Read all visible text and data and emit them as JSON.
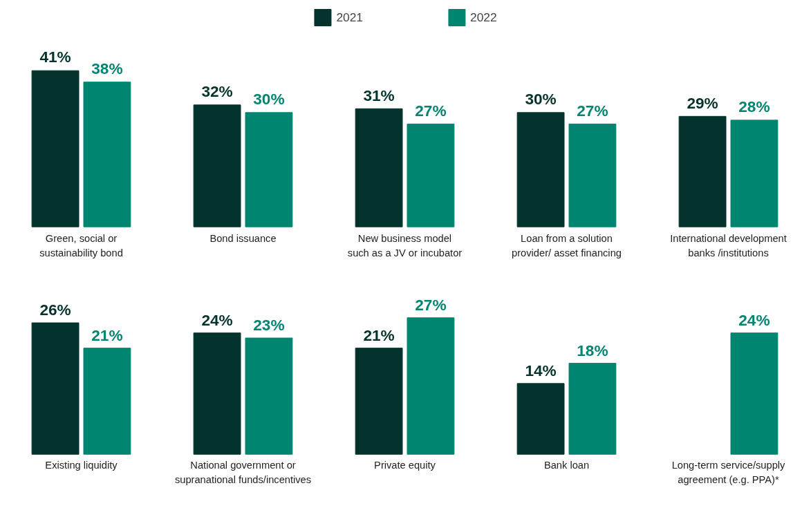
{
  "chart_data": [
    {
      "type": "bar",
      "categories": [
        "Green, social or\nsustainability bond",
        "Bond issuance",
        "New business model\nsuch as a JV or incubator",
        "Loan from a solution\nprovider/ asset financing",
        "International development\nbanks /institutions"
      ],
      "legend": "top",
      "series": [
        {
          "name": "2021",
          "color": "#04332d",
          "values": [
            41,
            32,
            31,
            30,
            29
          ],
          "value_labels": [
            "41%",
            "32%",
            "31%",
            "30%",
            "29%"
          ]
        },
        {
          "name": "2022",
          "color": "#008571",
          "values": [
            38,
            30,
            27,
            27,
            28
          ],
          "value_labels": [
            "38%",
            "30%",
            "27%",
            "27%",
            "28%"
          ]
        }
      ]
    },
    {
      "type": "bar",
      "categories": [
        "Existing liquidity",
        "National government or\nsupranational funds/incentives",
        "Private equity",
        "Bank loan",
        "Long-term service/supply\nagreement (e.g. PPA)*"
      ],
      "series": [
        {
          "color": "#04332d",
          "values": [
            26,
            24,
            21,
            14,
            null
          ],
          "value_labels": [
            "26%",
            "24%",
            "21%",
            "14%",
            null
          ]
        },
        {
          "color": "#008571",
          "values": [
            21,
            23,
            27,
            18,
            24
          ],
          "value_labels": [
            "21%",
            "23%",
            "27%",
            "18%",
            "24%"
          ]
        }
      ]
    }
  ]
}
